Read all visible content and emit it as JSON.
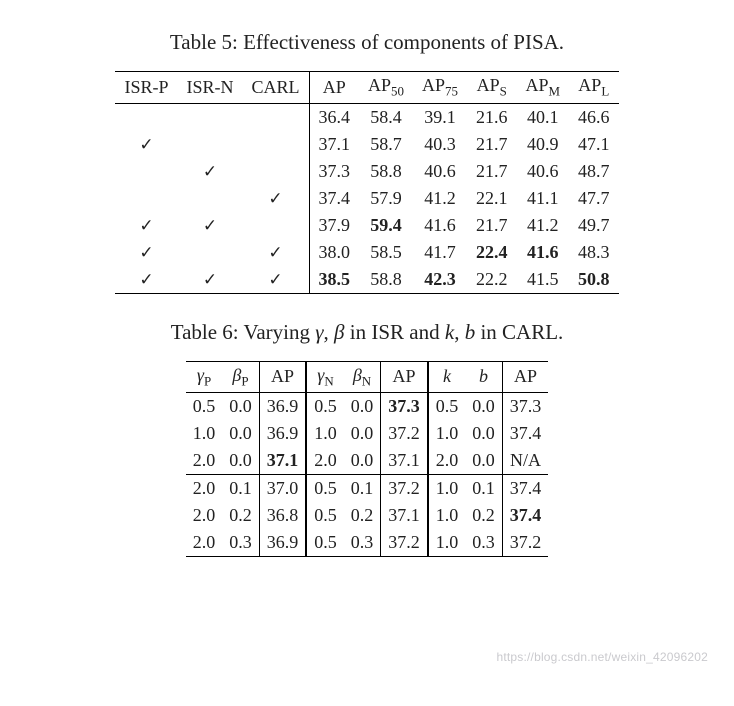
{
  "check": "✓",
  "table5": {
    "caption_prefix": "Table 5: ",
    "caption_text": "Effectiveness of components of PISA.",
    "headers": {
      "isrp": "ISR-P",
      "isrn": "ISR-N",
      "carl": "CARL",
      "ap": "AP",
      "ap50_pre": "AP",
      "ap50_sub": "50",
      "ap75_pre": "AP",
      "ap75_sub": "75",
      "aps_pre": "AP",
      "aps_sub": "S",
      "apm_pre": "AP",
      "apm_sub": "M",
      "apl_pre": "AP",
      "apl_sub": "L"
    },
    "rows": [
      {
        "isrp": false,
        "isrn": false,
        "carl": false,
        "ap": "36.4",
        "ap50": "58.4",
        "ap75": "39.1",
        "aps": "21.6",
        "apm": "40.1",
        "apl": "46.6",
        "bold": {}
      },
      {
        "isrp": true,
        "isrn": false,
        "carl": false,
        "ap": "37.1",
        "ap50": "58.7",
        "ap75": "40.3",
        "aps": "21.7",
        "apm": "40.9",
        "apl": "47.1",
        "bold": {}
      },
      {
        "isrp": false,
        "isrn": true,
        "carl": false,
        "ap": "37.3",
        "ap50": "58.8",
        "ap75": "40.6",
        "aps": "21.7",
        "apm": "40.6",
        "apl": "48.7",
        "bold": {}
      },
      {
        "isrp": false,
        "isrn": false,
        "carl": true,
        "ap": "37.4",
        "ap50": "57.9",
        "ap75": "41.2",
        "aps": "22.1",
        "apm": "41.1",
        "apl": "47.7",
        "bold": {}
      },
      {
        "isrp": true,
        "isrn": true,
        "carl": false,
        "ap": "37.9",
        "ap50": "59.4",
        "ap75": "41.6",
        "aps": "21.7",
        "apm": "41.2",
        "apl": "49.7",
        "bold": {
          "ap50": true
        }
      },
      {
        "isrp": true,
        "isrn": false,
        "carl": true,
        "ap": "38.0",
        "ap50": "58.5",
        "ap75": "41.7",
        "aps": "22.4",
        "apm": "41.6",
        "apl": "48.3",
        "bold": {
          "aps": true,
          "apm": true
        }
      },
      {
        "isrp": true,
        "isrn": true,
        "carl": true,
        "ap": "38.5",
        "ap50": "58.8",
        "ap75": "42.3",
        "aps": "22.2",
        "apm": "41.5",
        "apl": "50.8",
        "bold": {
          "ap": true,
          "ap75": true,
          "apl": true
        }
      }
    ]
  },
  "table6": {
    "caption_prefix": "Table 6: ",
    "caption_text_1": "Varying ",
    "caption_gamma": "γ",
    "caption_comma1": ", ",
    "caption_beta": "β",
    "caption_text_2": " in ISR and ",
    "caption_k": "k",
    "caption_comma2": ", ",
    "caption_b": "b",
    "caption_text_3": " in CARL.",
    "headers": {
      "gP_sym": "γ",
      "gP_sub": "P",
      "bP_sym": "β",
      "bP_sub": "P",
      "ap1": "AP",
      "gN_sym": "γ",
      "gN_sub": "N",
      "bN_sym": "β",
      "bN_sub": "N",
      "ap2": "AP",
      "k": "k",
      "b": "b",
      "ap3": "AP"
    },
    "rows": [
      {
        "gP": "0.5",
        "bP": "0.0",
        "ap1": "36.9",
        "gN": "0.5",
        "bN": "0.0",
        "ap2": "37.3",
        "k": "0.5",
        "b": "0.0",
        "ap3": "37.3",
        "bold": {
          "ap2": true
        }
      },
      {
        "gP": "1.0",
        "bP": "0.0",
        "ap1": "36.9",
        "gN": "1.0",
        "bN": "0.0",
        "ap2": "37.2",
        "k": "1.0",
        "b": "0.0",
        "ap3": "37.4",
        "bold": {}
      },
      {
        "gP": "2.0",
        "bP": "0.0",
        "ap1": "37.1",
        "gN": "2.0",
        "bN": "0.0",
        "ap2": "37.1",
        "k": "2.0",
        "b": "0.0",
        "ap3": "N/A",
        "bold": {
          "ap1": true
        }
      },
      {
        "gP": "2.0",
        "bP": "0.1",
        "ap1": "37.0",
        "gN": "0.5",
        "bN": "0.1",
        "ap2": "37.2",
        "k": "1.0",
        "b": "0.1",
        "ap3": "37.4",
        "bold": {},
        "sep": true
      },
      {
        "gP": "2.0",
        "bP": "0.2",
        "ap1": "36.8",
        "gN": "0.5",
        "bN": "0.2",
        "ap2": "37.1",
        "k": "1.0",
        "b": "0.2",
        "ap3": "37.4",
        "bold": {
          "ap3": true
        }
      },
      {
        "gP": "2.0",
        "bP": "0.3",
        "ap1": "36.9",
        "gN": "0.5",
        "bN": "0.3",
        "ap2": "37.2",
        "k": "1.0",
        "b": "0.3",
        "ap3": "37.2",
        "bold": {}
      }
    ]
  },
  "watermark": "https://blog.csdn.net/weixin_42096202"
}
